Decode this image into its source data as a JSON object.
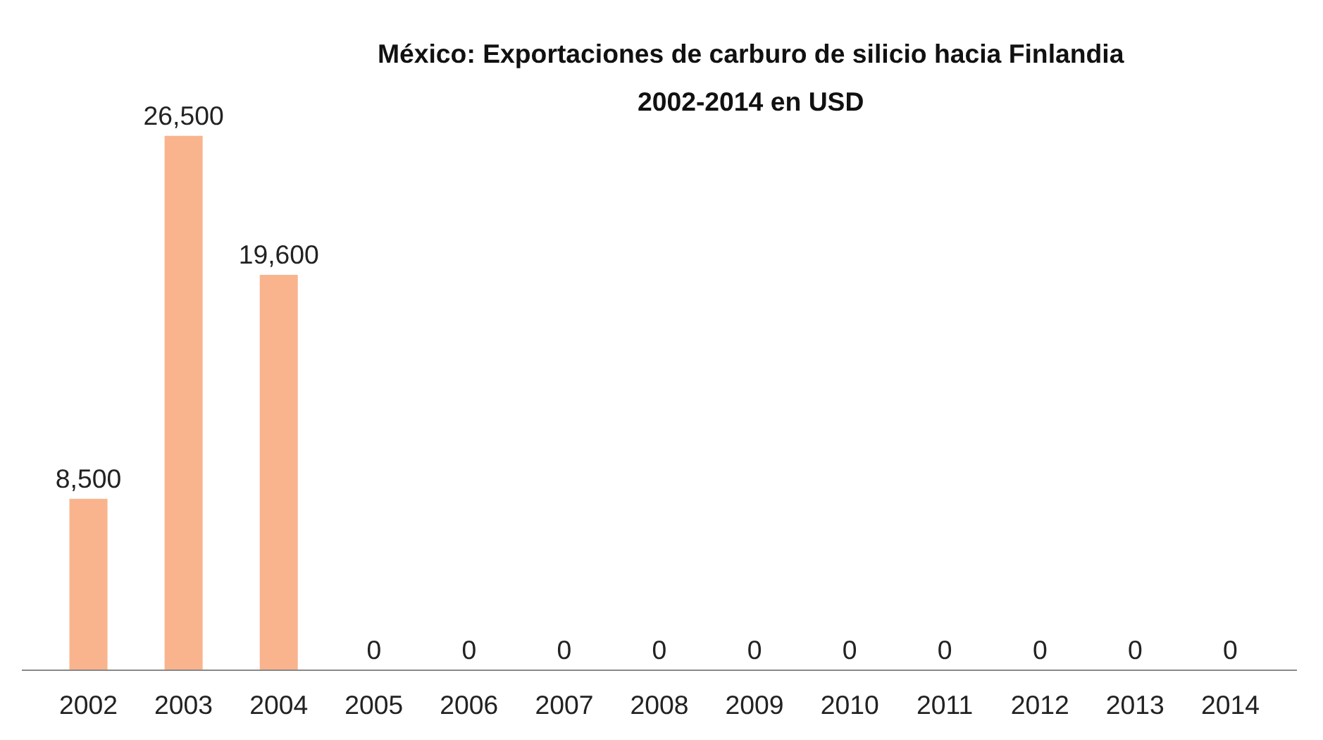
{
  "chart_data": {
    "type": "bar",
    "title": "México: Exportaciones de carburo de silicio hacia Finlandia\n2002-2014 en USD",
    "categories": [
      "2002",
      "2003",
      "2004",
      "2005",
      "2006",
      "2007",
      "2008",
      "2009",
      "2010",
      "2011",
      "2012",
      "2013",
      "2014"
    ],
    "values": [
      8500,
      26500,
      19600,
      0,
      0,
      0,
      0,
      0,
      0,
      0,
      0,
      0,
      0
    ],
    "value_labels": [
      "8,500",
      "26,500",
      "19,600",
      "0",
      "0",
      "0",
      "0",
      "0",
      "0",
      "0",
      "0",
      "0",
      "0"
    ],
    "color": "#f9b48e",
    "grid": false
  }
}
